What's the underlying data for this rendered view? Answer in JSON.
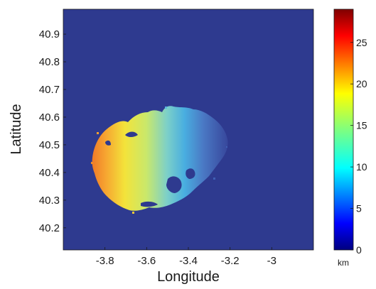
{
  "chart_data": {
    "type": "heatmap",
    "xlabel": "Longitude",
    "ylabel": "Latitude",
    "xlim": [
      -4.0,
      -2.8
    ],
    "ylim": [
      40.12,
      40.99
    ],
    "xticks": [
      -3.8,
      -3.6,
      -3.4,
      -3.2,
      -3
    ],
    "xtick_labels": [
      "-3.8",
      "-3.6",
      "-3.4",
      "-3.2",
      "-3"
    ],
    "yticks": [
      40.2,
      40.3,
      40.4,
      40.5,
      40.6,
      40.7,
      40.8,
      40.9
    ],
    "ytick_labels": [
      "40.2",
      "40.3",
      "40.4",
      "40.5",
      "40.6",
      "40.7",
      "40.8",
      "40.9"
    ],
    "background_color": "#2e3a8f",
    "colorbar": {
      "colormap": "jet",
      "range": [
        0,
        29
      ],
      "ticks": [
        0,
        5,
        10,
        15,
        20,
        25
      ],
      "tick_labels": [
        "0",
        "5",
        "10",
        "15",
        "20",
        "25"
      ],
      "unit": "km"
    },
    "field": {
      "description_values": "value decreases roughly linearly from west to east across the plume",
      "x_at_max": -3.85,
      "value_at_max": 21,
      "x_at_min": -3.2,
      "value_at_min": 2,
      "extent": {
        "lon_range": [
          -3.88,
          -3.2
        ],
        "lat_range": [
          40.26,
          40.64
        ]
      }
    }
  }
}
